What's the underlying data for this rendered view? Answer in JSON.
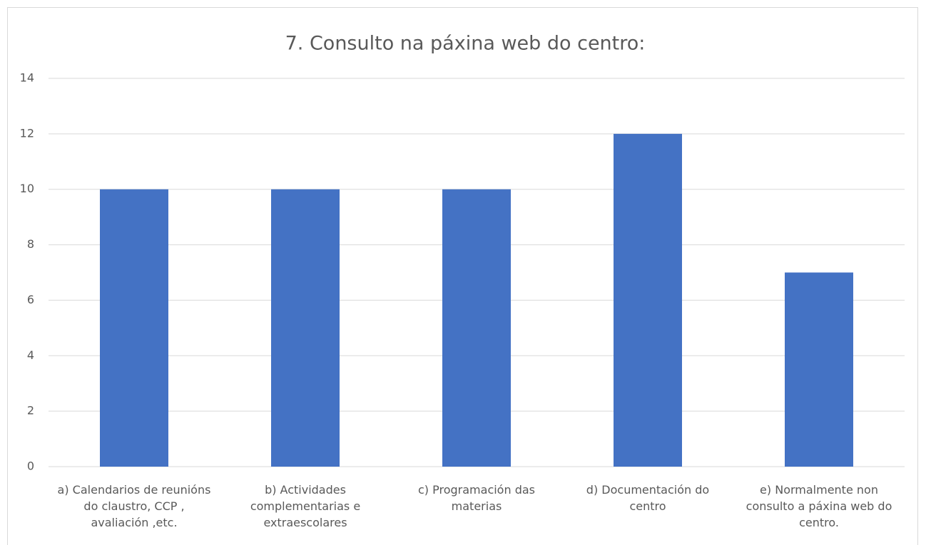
{
  "chart_data": {
    "type": "bar",
    "title": "7.  Consulto na páxina web do centro:",
    "categories": [
      "a) Calendarios de reunións do claustro, CCP , avaliación ,etc.",
      "b) Actividades complementarias e extraescolares",
      "c) Programación das materias",
      "d) Documentación do centro",
      "e) Normalmente non consulto a páxina web do centro."
    ],
    "values": [
      10,
      10,
      10,
      12,
      7
    ],
    "color": "#4472c4",
    "ylim": [
      0,
      14
    ],
    "yticks": [
      0,
      2,
      4,
      6,
      8,
      10,
      12,
      14
    ],
    "grid": true
  }
}
